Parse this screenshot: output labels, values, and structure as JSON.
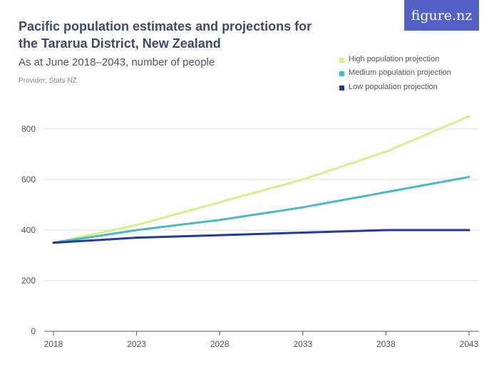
{
  "header": {
    "title": "Pacific population estimates and projections for the Tararua District, New Zealand",
    "subtitle": "As at June 2018–2043, number of people",
    "provider": "Provider: Stats NZ",
    "logo": "figure.nz"
  },
  "chart_data": {
    "type": "line",
    "title": "Pacific population estimates and projections for the Tararua District, New Zealand",
    "subtitle": "As at June 2018–2043, number of people",
    "x": [
      "2018",
      "2023",
      "2028",
      "2033",
      "2038",
      "2043"
    ],
    "ylim": [
      0,
      850
    ],
    "yticks": [
      "0",
      "200",
      "400",
      "600",
      "800"
    ],
    "ytick_values": [
      0,
      200,
      400,
      600,
      800
    ],
    "grid": true,
    "legend_position": "top-right",
    "series": [
      {
        "name": "High population projection",
        "color": "#d4f08c",
        "values": [
          350,
          420,
          510,
          600,
          710,
          850
        ]
      },
      {
        "name": "Medium population projection",
        "color": "#4bb8c6",
        "values": [
          350,
          400,
          440,
          490,
          550,
          610
        ]
      },
      {
        "name": "Low population projection",
        "color": "#253a94",
        "values": [
          350,
          370,
          380,
          390,
          400,
          400
        ]
      }
    ]
  }
}
